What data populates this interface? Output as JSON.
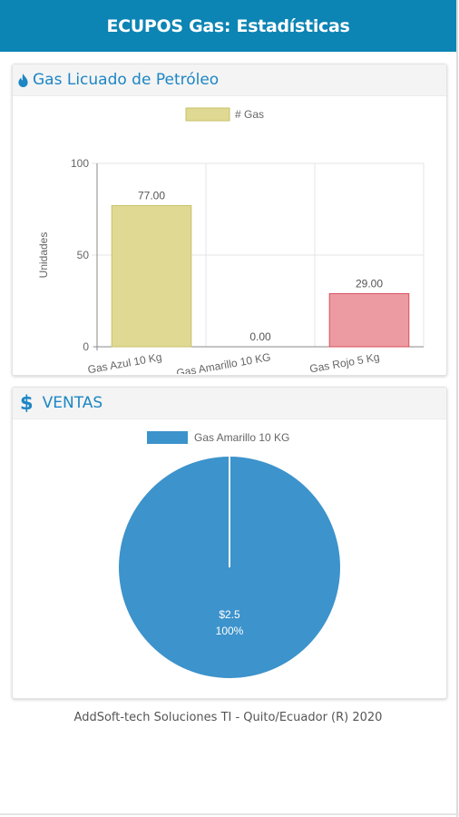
{
  "app": {
    "title": "ECUPOS Gas: Estadísticas"
  },
  "gas_panel": {
    "title": "Gas Licuado de Petróleo",
    "icon": "flame-icon"
  },
  "ventas_panel": {
    "title": "VENTAS",
    "icon": "dollar-icon"
  },
  "footer": {
    "text": "AddSoft-tech Soluciones TI - Quito/Ecuador (R) 2020"
  },
  "colors": {
    "appbar": "#0c84b4",
    "accent": "#1d86c4",
    "pie": "#3d93cb"
  },
  "chart_data": [
    {
      "type": "bar",
      "categories": [
        "Gas Azul  10 Kg",
        "Gas Amarillo 10 KG",
        "Gas Rojo 5 Kg"
      ],
      "values": [
        77.0,
        0.0,
        29.0
      ],
      "value_labels": [
        "77.00",
        "0.00",
        "29.00"
      ],
      "series": [
        {
          "name": "# Gas",
          "values": [
            77.0,
            0.0,
            29.0
          ]
        }
      ],
      "ylabel": "Unidades",
      "ylim": [
        0,
        100
      ],
      "yticks": [
        "0",
        "50",
        "100"
      ],
      "bar_colors": [
        "#dfd993",
        "#f0d57a",
        "#ec9ba2"
      ],
      "bar_borders": [
        "#c9c16a",
        "#e0b84a",
        "#d7505f"
      ],
      "grid": true,
      "legend": "top"
    },
    {
      "type": "pie",
      "labels": [
        "Gas Amarillo 10 KG"
      ],
      "values": [
        2.5
      ],
      "value_label": "$2.5",
      "percent_label": "100%",
      "colors": [
        "#3d93cb"
      ],
      "legend": "top"
    }
  ]
}
